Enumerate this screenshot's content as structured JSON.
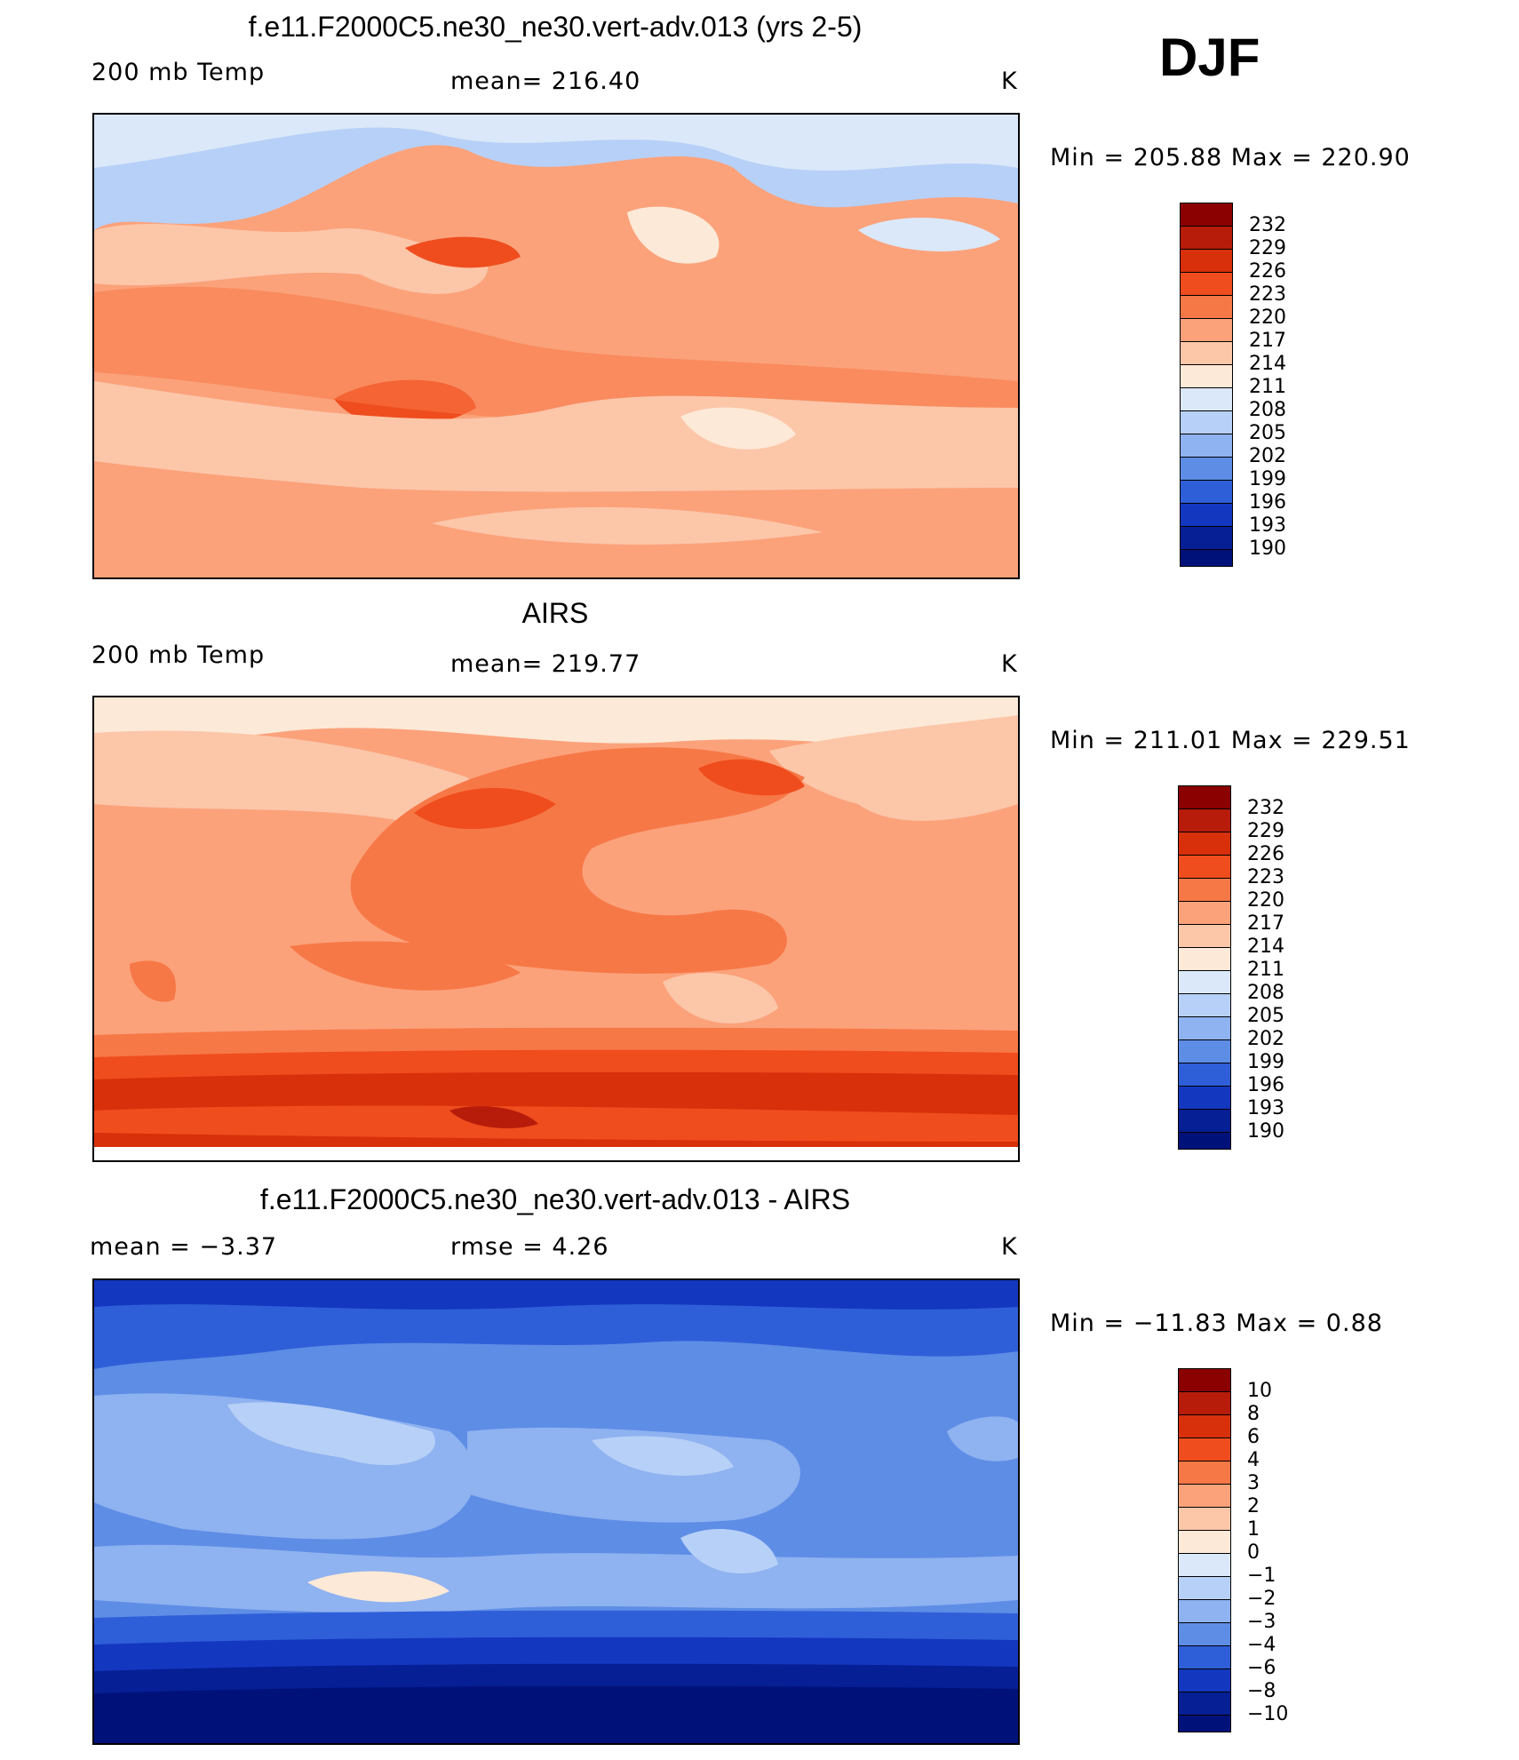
{
  "figure": {
    "season": "DJF"
  },
  "panels": [
    {
      "title": "f.e11.F2000C5.ne30_ne30.vert-adv.013 (yrs 2-5)",
      "left_label": "200 mb Temp",
      "center_label": "mean=  216.40",
      "units": "K",
      "minmax": "Min  =  205.88  Max  =  220.90",
      "colorbar": [
        "232",
        "229",
        "226",
        "223",
        "220",
        "217",
        "214",
        "211",
        "208",
        "205",
        "202",
        "199",
        "196",
        "193",
        "190"
      ]
    },
    {
      "title": "AIRS",
      "left_label": "200 mb Temp",
      "center_label": "mean=  219.77",
      "units": "K",
      "minmax": "Min  =  211.01  Max  =  229.51",
      "colorbar": [
        "232",
        "229",
        "226",
        "223",
        "220",
        "217",
        "214",
        "211",
        "208",
        "205",
        "202",
        "199",
        "196",
        "193",
        "190"
      ]
    },
    {
      "title": "f.e11.F2000C5.ne30_ne30.vert-adv.013 - AIRS",
      "left_label": "mean  =    −3.37",
      "center_label": "rmse  =     4.26",
      "units": "K",
      "minmax": "Min  =  −11.83  Max  =     0.88",
      "colorbar": [
        "10",
        "8",
        "6",
        "4",
        "3",
        "2",
        "1",
        "0",
        "−1",
        "−2",
        "−3",
        "−4",
        "−6",
        "−8",
        "−10"
      ]
    }
  ],
  "colors": {
    "scale": [
      "#8b0000",
      "#b71c0a",
      "#d8300a",
      "#ef4d1e",
      "#f77847",
      "#fba27b",
      "#fcc6a9",
      "#fde9d7",
      "#dbe8f9",
      "#b7d0f7",
      "#8fb2f0",
      "#5e8de6",
      "#2f5fd8",
      "#1437c0",
      "#061f95",
      "#00127a"
    ]
  }
}
